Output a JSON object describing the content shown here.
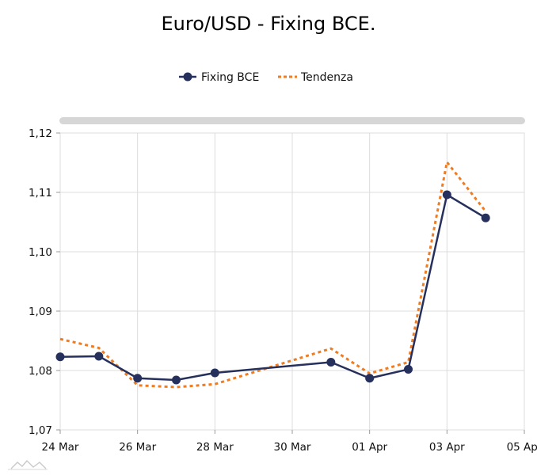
{
  "chart_data": {
    "type": "line",
    "title": "Euro/USD - Fixing BCE.",
    "x_ticks": [
      "24 Mar",
      "26 Mar",
      "28 Mar",
      "30 Mar",
      "01 Apr",
      "03 Apr",
      "05 Apr"
    ],
    "x_range": [
      "2020-03-24",
      "2020-04-05"
    ],
    "ylim": [
      1.07,
      1.12
    ],
    "y_ticks": [
      "1,07",
      "1,08",
      "1,09",
      "1,10",
      "1,11",
      "1,12"
    ],
    "grid": true,
    "legend_position": "top",
    "series": [
      {
        "name": "Fixing BCE",
        "style": "solid-markers",
        "color": "#26305c",
        "points": [
          {
            "x": "2020-03-24",
            "y": 1.0823
          },
          {
            "x": "2020-03-25",
            "y": 1.0824
          },
          {
            "x": "2020-03-26",
            "y": 1.0787
          },
          {
            "x": "2020-03-27",
            "y": 1.0784
          },
          {
            "x": "2020-03-28",
            "y": 1.0796
          },
          {
            "x": "2020-03-31",
            "y": 1.0814
          },
          {
            "x": "2020-04-01",
            "y": 1.0787
          },
          {
            "x": "2020-04-02",
            "y": 1.0802
          },
          {
            "x": "2020-04-03",
            "y": 1.1096
          },
          {
            "x": "2020-04-04",
            "y": 1.1057
          }
        ]
      },
      {
        "name": "Tendenza",
        "style": "dotted",
        "color": "#f07c22",
        "points": [
          {
            "x": "2020-03-24",
            "y": 1.0853
          },
          {
            "x": "2020-03-25",
            "y": 1.0838
          },
          {
            "x": "2020-03-26",
            "y": 1.0775
          },
          {
            "x": "2020-03-27",
            "y": 1.0772
          },
          {
            "x": "2020-03-28",
            "y": 1.0777
          },
          {
            "x": "2020-03-31",
            "y": 1.0837
          },
          {
            "x": "2020-04-01",
            "y": 1.0795
          },
          {
            "x": "2020-04-02",
            "y": 1.0814
          },
          {
            "x": "2020-04-03",
            "y": 1.1151
          },
          {
            "x": "2020-04-04",
            "y": 1.1068
          }
        ]
      }
    ]
  },
  "navigator": {
    "color": "#d6d6d6"
  }
}
